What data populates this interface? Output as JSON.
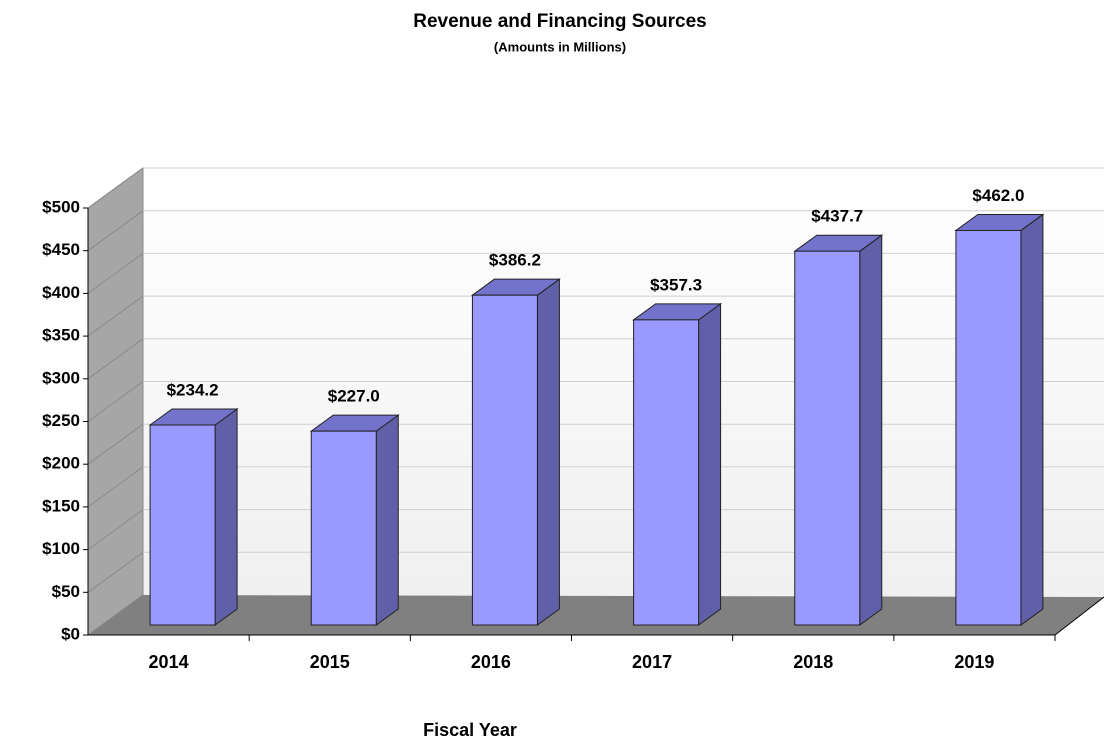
{
  "chart_data": {
    "type": "bar3d",
    "title": "Revenue and Financing Sources",
    "subtitle": "(Amounts in Millions)",
    "x_label": "Fiscal Year",
    "categories": [
      "2014",
      "2015",
      "2016",
      "2017",
      "2018",
      "2019"
    ],
    "values": [
      234.2,
      227.0,
      386.2,
      357.3,
      437.7,
      462.0
    ],
    "value_labels": [
      "$234.2",
      "$227.0",
      "$386.2",
      "$357.3",
      "$437.7",
      "$462.0"
    ],
    "color": "#9999ff",
    "ylim": [
      0,
      500
    ],
    "yticks": [
      {
        "value": 0,
        "label": "$0"
      },
      {
        "value": 50,
        "label": "$50"
      },
      {
        "value": 100,
        "label": "$100"
      },
      {
        "value": 150,
        "label": "$150"
      },
      {
        "value": 200,
        "label": "$200"
      },
      {
        "value": 250,
        "label": "$250"
      },
      {
        "value": 300,
        "label": "$300"
      },
      {
        "value": 350,
        "label": "$350"
      },
      {
        "value": 400,
        "label": "$400"
      },
      {
        "value": 450,
        "label": "$450"
      },
      {
        "value": 500,
        "label": "$500"
      }
    ],
    "grid": true
  }
}
